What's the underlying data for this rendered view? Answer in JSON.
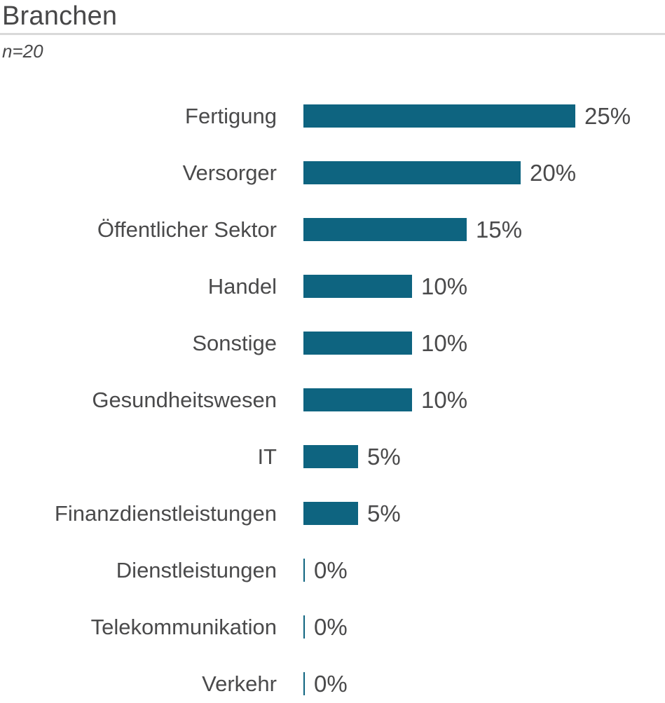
{
  "chart_data": {
    "type": "bar",
    "orientation": "horizontal",
    "title": "Branchen",
    "note": "n=20",
    "categories": [
      "Fertigung",
      "Versorger",
      "Öffentlicher Sektor",
      "Handel",
      "Sonstige",
      "Gesundheitswesen",
      "IT",
      "Finanzdienstleistungen",
      "Dienstleistungen",
      "Telekommunikation",
      "Verkehr"
    ],
    "values": [
      25,
      20,
      15,
      10,
      10,
      10,
      5,
      5,
      0,
      0,
      0
    ],
    "value_labels": [
      "25%",
      "20%",
      "15%",
      "10%",
      "10%",
      "10%",
      "5%",
      "5%",
      "0%",
      "0%",
      "0%"
    ],
    "xlim": [
      0,
      25
    ],
    "grid": false,
    "legend": "none",
    "colors": {
      "bar": "#0e6480",
      "text": "#4a4a4b",
      "divider": "#d9d9d9"
    }
  }
}
